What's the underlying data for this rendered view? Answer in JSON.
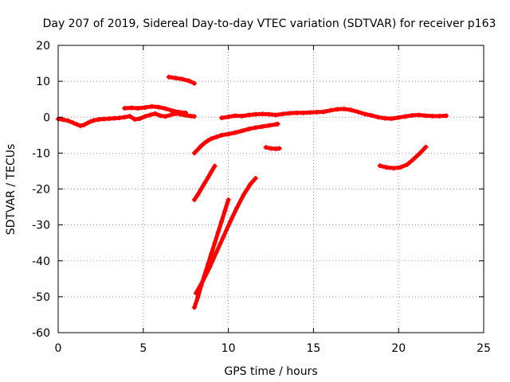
{
  "chart_data": {
    "type": "scatter",
    "title": "Day 207 of 2019, Sidereal Day-to-day VTEC variation (SDTVAR) for receiver p163",
    "xlabel": "GPS time / hours",
    "ylabel": "SDTVAR / TECUs",
    "xlim": [
      0,
      25
    ],
    "ylim": [
      -60,
      20
    ],
    "xticks": [
      0,
      5,
      10,
      15,
      20,
      25
    ],
    "yticks": [
      -60,
      -50,
      -40,
      -30,
      -20,
      -10,
      0,
      10,
      20
    ],
    "grid": true,
    "legend": "none",
    "marker_color": "#ff0000",
    "series": [
      {
        "points": [
          [
            0.0,
            -0.5
          ],
          [
            0.3,
            -0.7
          ],
          [
            0.6,
            -1.0
          ],
          [
            0.9,
            -1.6
          ],
          [
            1.1,
            -2.0
          ],
          [
            1.3,
            -2.4
          ],
          [
            1.5,
            -2.2
          ],
          [
            1.7,
            -1.7
          ],
          [
            1.9,
            -1.2
          ],
          [
            2.1,
            -0.9
          ],
          [
            2.4,
            -0.6
          ],
          [
            2.7,
            -0.5
          ],
          [
            3.0,
            -0.4
          ],
          [
            3.3,
            -0.3
          ],
          [
            3.6,
            -0.2
          ],
          [
            3.9,
            0.0
          ],
          [
            4.2,
            0.3
          ],
          [
            4.5,
            -0.6
          ],
          [
            4.8,
            -0.4
          ],
          [
            5.1,
            0.2
          ],
          [
            5.4,
            0.6
          ],
          [
            5.7,
            1.0
          ],
          [
            6.0,
            0.4
          ],
          [
            6.3,
            0.2
          ],
          [
            6.6,
            0.6
          ],
          [
            6.9,
            1.0
          ],
          [
            7.2,
            0.8
          ],
          [
            7.5,
            0.5
          ],
          [
            7.8,
            0.3
          ],
          [
            8.0,
            0.2
          ]
        ]
      },
      {
        "points": [
          [
            3.9,
            2.5
          ],
          [
            4.3,
            2.6
          ],
          [
            4.7,
            2.5
          ],
          [
            5.1,
            2.7
          ],
          [
            5.5,
            3.0
          ],
          [
            5.9,
            2.8
          ],
          [
            6.3,
            2.4
          ],
          [
            6.7,
            1.8
          ],
          [
            7.1,
            1.4
          ],
          [
            7.5,
            1.2
          ]
        ]
      },
      {
        "points": [
          [
            6.5,
            11.2
          ],
          [
            6.9,
            10.9
          ],
          [
            7.3,
            10.6
          ],
          [
            7.7,
            10.1
          ],
          [
            8.0,
            9.4
          ]
        ]
      },
      {
        "points": [
          [
            8.0,
            -10.0
          ],
          [
            8.2,
            -9.0
          ],
          [
            8.4,
            -8.0
          ],
          [
            8.6,
            -7.2
          ],
          [
            8.8,
            -6.5
          ],
          [
            9.0,
            -6.0
          ],
          [
            9.3,
            -5.5
          ],
          [
            9.6,
            -5.0
          ],
          [
            10.0,
            -4.7
          ],
          [
            10.4,
            -4.3
          ],
          [
            10.8,
            -3.8
          ],
          [
            11.2,
            -3.3
          ],
          [
            11.6,
            -2.9
          ],
          [
            12.0,
            -2.6
          ],
          [
            12.4,
            -2.3
          ],
          [
            12.8,
            -2.0
          ],
          [
            12.9,
            -1.9
          ]
        ]
      },
      {
        "points": [
          [
            8.0,
            -23.0
          ],
          [
            8.2,
            -21.6
          ],
          [
            8.4,
            -20.0
          ],
          [
            8.6,
            -18.4
          ],
          [
            8.8,
            -16.8
          ],
          [
            9.0,
            -15.2
          ],
          [
            9.2,
            -13.6
          ]
        ]
      },
      {
        "points": [
          [
            8.0,
            -53.0
          ],
          [
            8.2,
            -50.2
          ],
          [
            8.4,
            -47.0
          ],
          [
            8.6,
            -44.0
          ],
          [
            8.8,
            -41.0
          ],
          [
            9.0,
            -38.0
          ],
          [
            9.2,
            -35.0
          ],
          [
            9.4,
            -32.0
          ],
          [
            9.6,
            -29.0
          ],
          [
            9.8,
            -26.0
          ],
          [
            10.0,
            -23.0
          ]
        ]
      },
      {
        "points": [
          [
            8.1,
            -49.0
          ],
          [
            8.5,
            -45.6
          ],
          [
            8.9,
            -41.8
          ],
          [
            9.3,
            -37.6
          ],
          [
            9.7,
            -33.4
          ],
          [
            10.1,
            -29.2
          ],
          [
            10.5,
            -25.2
          ],
          [
            10.9,
            -21.6
          ],
          [
            11.3,
            -18.6
          ],
          [
            11.6,
            -17.0
          ]
        ]
      },
      {
        "points": [
          [
            9.6,
            -0.2
          ],
          [
            10.0,
            0.1
          ],
          [
            10.4,
            0.4
          ],
          [
            10.8,
            0.3
          ],
          [
            11.2,
            0.6
          ],
          [
            11.6,
            0.8
          ],
          [
            12.0,
            0.9
          ],
          [
            12.4,
            0.8
          ],
          [
            12.8,
            0.6
          ],
          [
            13.2,
            0.9
          ],
          [
            13.6,
            1.1
          ],
          [
            14.0,
            1.2
          ],
          [
            14.4,
            1.2
          ],
          [
            14.8,
            1.3
          ],
          [
            15.2,
            1.4
          ],
          [
            15.6,
            1.5
          ],
          [
            16.0,
            1.9
          ],
          [
            16.4,
            2.2
          ],
          [
            16.8,
            2.3
          ],
          [
            17.2,
            2.0
          ],
          [
            17.6,
            1.5
          ],
          [
            18.0,
            0.9
          ],
          [
            18.4,
            0.5
          ],
          [
            18.8,
            0.0
          ],
          [
            19.2,
            -0.3
          ],
          [
            19.6,
            -0.4
          ],
          [
            20.0,
            -0.1
          ],
          [
            20.4,
            0.2
          ],
          [
            20.8,
            0.5
          ],
          [
            21.2,
            0.6
          ],
          [
            21.6,
            0.4
          ],
          [
            22.0,
            0.3
          ],
          [
            22.4,
            0.3
          ],
          [
            22.8,
            0.4
          ]
        ]
      },
      {
        "points": [
          [
            12.2,
            -8.4
          ],
          [
            12.5,
            -8.7
          ],
          [
            12.8,
            -8.8
          ],
          [
            13.0,
            -8.7
          ]
        ]
      },
      {
        "points": [
          [
            18.9,
            -13.5
          ],
          [
            19.3,
            -14.0
          ],
          [
            19.7,
            -14.2
          ],
          [
            20.1,
            -14.0
          ],
          [
            20.5,
            -13.2
          ],
          [
            20.9,
            -11.6
          ],
          [
            21.3,
            -9.8
          ],
          [
            21.6,
            -8.3
          ]
        ]
      }
    ]
  }
}
